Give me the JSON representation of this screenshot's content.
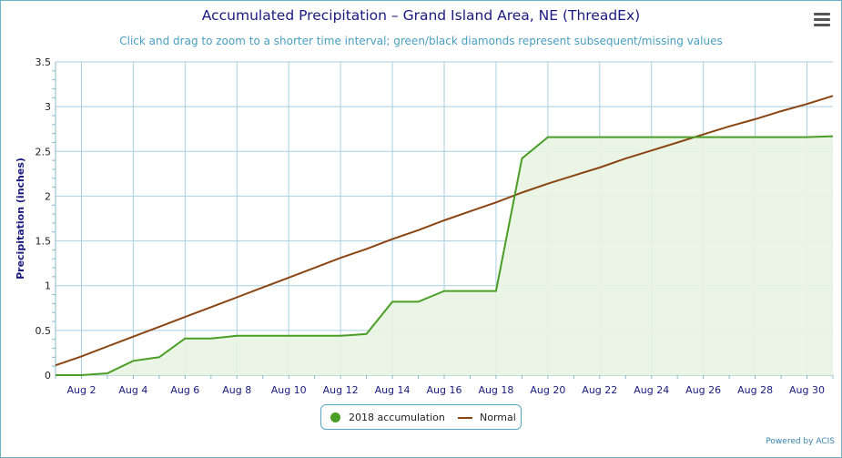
{
  "chart_data": {
    "type": "line",
    "title": "Accumulated Precipitation – Grand Island Area, NE (ThreadEx)",
    "subtitle": "Click and drag to zoom to a shorter time interval; green/black diamonds represent subsequent/missing values",
    "ylabel": "Precipitation (inches)",
    "xlabel": "",
    "xlim": [
      1,
      31
    ],
    "ylim": [
      0,
      3.5
    ],
    "yticks": [
      0,
      0.5,
      1,
      1.5,
      2,
      2.5,
      3,
      3.5
    ],
    "ytick_labels": [
      "0",
      "0.5",
      "1",
      "1.5",
      "2",
      "2.5",
      "3",
      "3.5"
    ],
    "xticks": [
      2,
      4,
      6,
      8,
      10,
      12,
      14,
      16,
      18,
      20,
      22,
      24,
      26,
      28,
      30
    ],
    "xtick_labels": [
      "Aug 2",
      "Aug 4",
      "Aug 6",
      "Aug 8",
      "Aug 10",
      "Aug 12",
      "Aug 14",
      "Aug 16",
      "Aug 18",
      "Aug 20",
      "Aug 22",
      "Aug 24",
      "Aug 26",
      "Aug 28",
      "Aug 30"
    ],
    "grid": true,
    "legend_position": "bottom-center",
    "series": [
      {
        "name": "2018 accumulation",
        "color": "#4a9e26",
        "fill": "#e8f4e2",
        "style": "area",
        "x": [
          1,
          2,
          3,
          4,
          5,
          6,
          7,
          8,
          9,
          10,
          11,
          12,
          13,
          14,
          15,
          16,
          17,
          18,
          19,
          20,
          21,
          22,
          23,
          24,
          25,
          26,
          27,
          28,
          29,
          30,
          31
        ],
        "values": [
          0,
          0,
          0.02,
          0.16,
          0.2,
          0.41,
          0.41,
          0.44,
          0.44,
          0.44,
          0.44,
          0.44,
          0.46,
          0.82,
          0.82,
          0.94,
          0.94,
          0.94,
          2.42,
          2.66,
          2.66,
          2.66,
          2.66,
          2.66,
          2.66,
          2.66,
          2.66,
          2.66,
          2.66,
          2.66,
          2.67
        ]
      },
      {
        "name": "Normal",
        "color": "#8b4513",
        "style": "line",
        "x": [
          1,
          2,
          3,
          4,
          5,
          6,
          7,
          8,
          9,
          10,
          11,
          12,
          13,
          14,
          15,
          16,
          17,
          18,
          19,
          20,
          21,
          22,
          23,
          24,
          25,
          26,
          27,
          28,
          29,
          30,
          31
        ],
        "values": [
          0.11,
          0.21,
          0.32,
          0.43,
          0.54,
          0.65,
          0.76,
          0.87,
          0.98,
          1.09,
          1.2,
          1.31,
          1.41,
          1.52,
          1.62,
          1.73,
          1.83,
          1.93,
          2.04,
          2.14,
          2.23,
          2.32,
          2.42,
          2.51,
          2.6,
          2.69,
          2.78,
          2.86,
          2.95,
          3.03,
          3.12
        ]
      }
    ]
  },
  "menu": {
    "icon": "hamburger-menu-icon"
  },
  "credits": "Powered by ACIS"
}
